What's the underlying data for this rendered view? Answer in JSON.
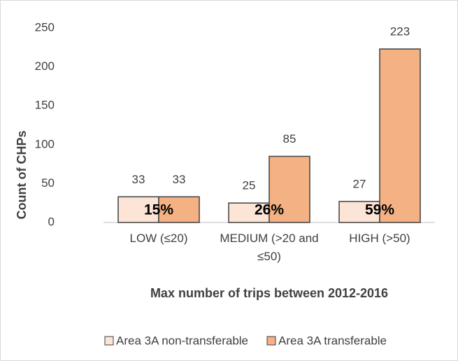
{
  "chart_data": {
    "type": "bar",
    "categories": [
      "LOW (≤20)",
      "MEDIUM (>20 and ≤50)",
      "HIGH (>50)"
    ],
    "series": [
      {
        "name": "Area 3A non-transferable",
        "color": "#fce4d6",
        "values": [
          33,
          25,
          27
        ]
      },
      {
        "name": "Area 3A transferable",
        "color": "#f4b183",
        "values": [
          33,
          85,
          223
        ]
      }
    ],
    "annotations": [
      "15%",
      "26%",
      "59%"
    ],
    "x_label": "Max number of trips between 2012-2016",
    "y_label": "Count of CHPs",
    "ylim": [
      0,
      250
    ],
    "yticks": [
      0,
      50,
      100,
      150,
      200,
      250
    ],
    "grid": false,
    "legend": "bottom"
  }
}
